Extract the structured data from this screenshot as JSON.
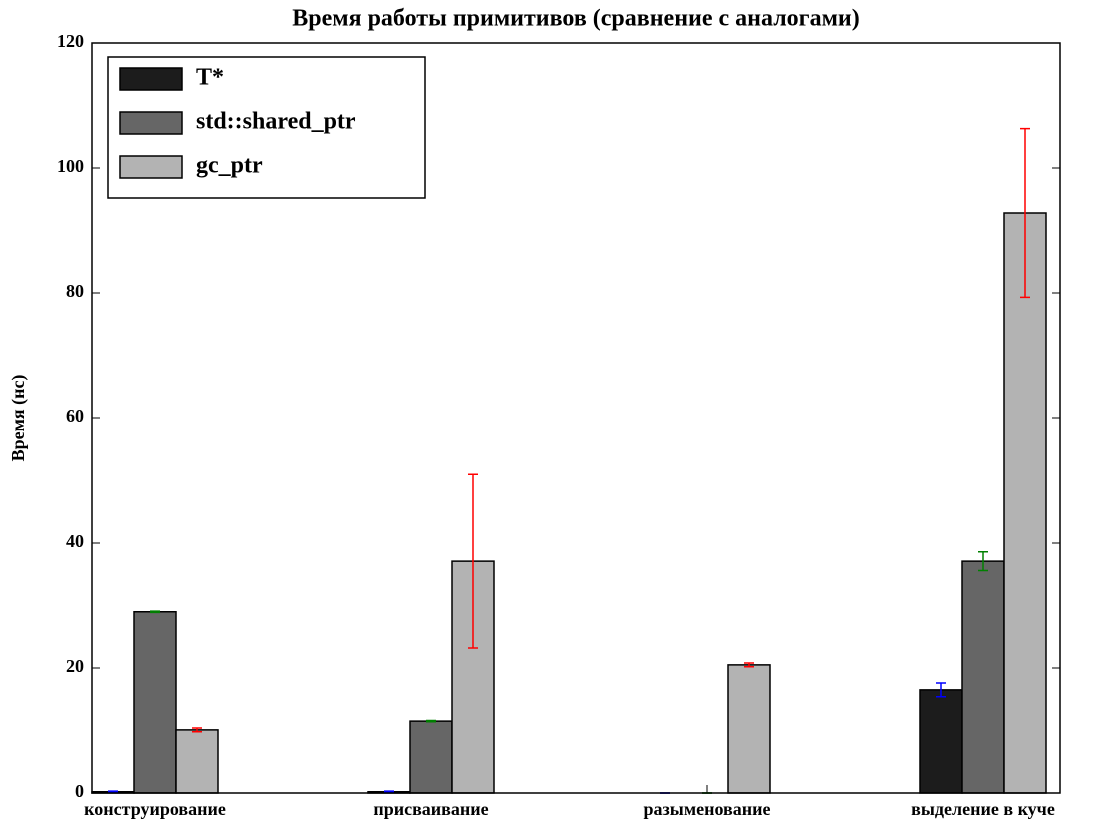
{
  "chart_data": {
    "type": "bar",
    "title": "Время работы примитивов (сравнение с аналогами)",
    "y_label": "Время (нс)",
    "categories": [
      "конструирование",
      "присваивание",
      "разыменование",
      "выделение в куче"
    ],
    "series": [
      {
        "name": "T*",
        "color": "#1c1c1c",
        "error_color": "#0000ff",
        "values": [
          0.2,
          0.2,
          0,
          16.5
        ],
        "errors": [
          0.1,
          0.1,
          0,
          1.1
        ]
      },
      {
        "name": "std::shared_ptr",
        "color": "#666666",
        "error_color": "#008000",
        "values": [
          29,
          11.5,
          0,
          37.1
        ],
        "errors": [
          0.1,
          0.1,
          0,
          1.5
        ]
      },
      {
        "name": "gc_ptr",
        "color": "#b3b3b3",
        "error_color": "#ff0000",
        "values": [
          10.1,
          37.1,
          20.5,
          92.8
        ],
        "errors": [
          0.3,
          13.9,
          0.3,
          13.5
        ]
      }
    ],
    "ylim": [
      0,
      120
    ],
    "yticks": [
      0,
      20,
      40,
      60,
      80,
      100,
      120
    ],
    "legend": "upper left"
  }
}
